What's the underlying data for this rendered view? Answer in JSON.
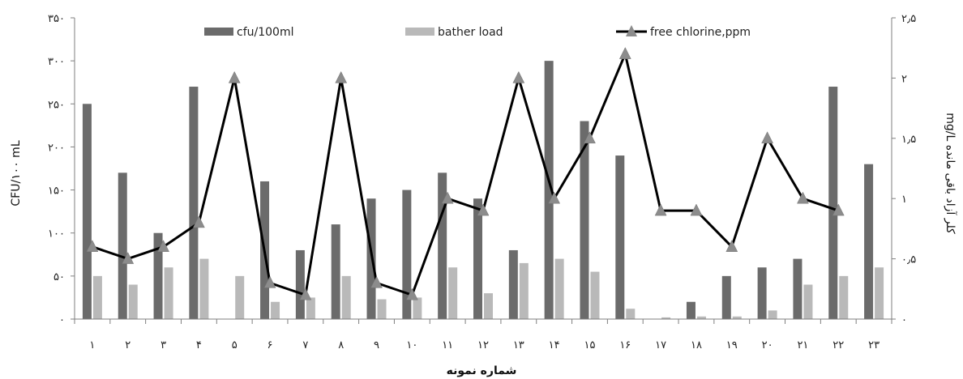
{
  "chart_data": {
    "type": "bar",
    "categories": [
      "۱",
      "۲",
      "۳",
      "۴",
      "۵",
      "۶",
      "۷",
      "۸",
      "۹",
      "۱۰",
      "۱۱",
      "۱۲",
      "۱۳",
      "۱۴",
      "۱۵",
      "۱۶",
      "۱۷",
      "۱۸",
      "۱۹",
      "۲۰",
      "۲۱",
      "۲۲",
      "۲۳"
    ],
    "series": [
      {
        "name": "cfu/100ml",
        "kind": "bar",
        "axis": "left",
        "color": "#6b6b6b",
        "values": [
          250,
          170,
          100,
          270,
          0,
          160,
          80,
          110,
          140,
          150,
          170,
          140,
          80,
          300,
          230,
          190,
          0,
          20,
          50,
          60,
          70,
          270,
          180
        ]
      },
      {
        "name": "bather load",
        "kind": "bar",
        "axis": "left",
        "color": "#b9b9b9",
        "values": [
          50,
          40,
          60,
          70,
          50,
          20,
          25,
          50,
          23,
          25,
          60,
          30,
          65,
          70,
          55,
          12,
          2,
          3,
          3,
          10,
          40,
          50,
          60
        ]
      },
      {
        "name": "free chlorine,ppm",
        "kind": "line",
        "axis": "right",
        "color": "#000000",
        "marker_color": "#8c8c8c",
        "values": [
          0.6,
          0.5,
          0.6,
          0.8,
          2.0,
          0.3,
          0.2,
          2.0,
          0.3,
          0.2,
          1.0,
          0.9,
          2.0,
          1.0,
          1.5,
          2.2,
          0.9,
          0.9,
          0.6,
          1.5,
          1.0,
          0.9,
          null
        ]
      }
    ],
    "left_axis": {
      "ylim": [
        0,
        350
      ],
      "ticks": [
        0,
        50,
        100,
        150,
        200,
        250,
        300,
        350
      ],
      "tick_labels": [
        "۰",
        "۵۰",
        "۱۰۰",
        "۱۵۰",
        "۲۰۰",
        "۲۵۰",
        "۳۰۰",
        "۳۵۰"
      ]
    },
    "right_axis": {
      "ylim": [
        0,
        2.5
      ],
      "ticks": [
        0,
        0.5,
        1,
        1.5,
        2,
        2.5
      ],
      "tick_labels": [
        "۰",
        "۰٫۵",
        "۱",
        "۱٫۵",
        "۲",
        "۲٫۵"
      ]
    },
    "xlabel": "شماره نمونه",
    "ylabel_left": "CFU/۱۰۰ mL",
    "ylabel_right": "کلر آزاد باقی مانده mg/L",
    "legend": "top",
    "grid": false
  }
}
